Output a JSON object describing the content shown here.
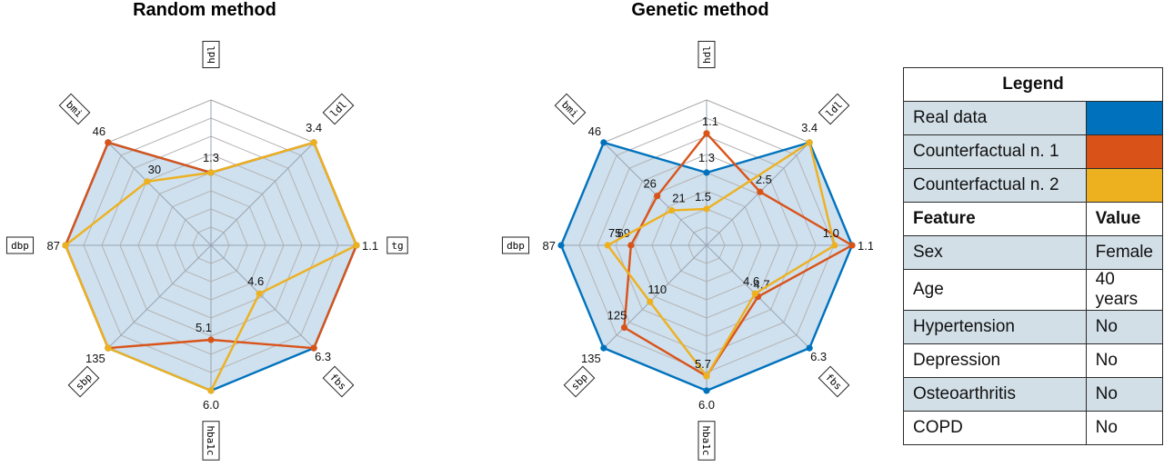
{
  "chart_data": [
    {
      "type": "radar",
      "title": "Random method",
      "axes": [
        "hdl",
        "ldl",
        "tg",
        "fbs",
        "hba1c",
        "sbp",
        "dbp",
        "bmi"
      ],
      "series": [
        {
          "values": [
            1.3,
            3.4,
            1.1,
            6.3,
            6.0,
            135,
            87,
            46
          ],
          "value_labels": [
            "1.3",
            "3.4",
            "1.1",
            "6.3",
            "6.0",
            "135",
            "87",
            "46"
          ],
          "fractions": [
            0.5,
            1.0,
            1.0,
            1.0,
            1.0,
            1.0,
            1.0,
            1.0
          ],
          "color": "#0072BD",
          "filled": true
        },
        {
          "values": [
            1.3,
            3.4,
            1.1,
            6.3,
            5.1,
            135,
            87,
            46
          ],
          "value_labels": [
            "",
            "",
            "",
            "",
            "5.1",
            "",
            "",
            ""
          ],
          "fractions": [
            0.5,
            1.0,
            1.0,
            1.0,
            0.65,
            1.0,
            1.0,
            1.0
          ],
          "color": "#D95319",
          "filled": false
        },
        {
          "values": [
            1.3,
            3.4,
            1.1,
            4.6,
            6.0,
            135,
            87,
            30
          ],
          "value_labels": [
            "",
            "",
            "",
            "4.6",
            "",
            "",
            "",
            "30"
          ],
          "fractions": [
            0.5,
            1.0,
            1.0,
            0.47,
            1.0,
            1.0,
            1.0,
            0.62
          ],
          "color": "#EDB120",
          "filled": false
        }
      ]
    },
    {
      "type": "radar",
      "title": "Genetic method",
      "axes": [
        "hdl",
        "ldl",
        "tg",
        "fbs",
        "hba1c",
        "sbp",
        "dbp",
        "bmi"
      ],
      "series": [
        {
          "values": [
            1.3,
            3.4,
            1.1,
            6.3,
            6.0,
            135,
            87,
            46
          ],
          "value_labels": [
            "1.3",
            "3.4",
            "1.1",
            "6.3",
            "6.0",
            "135",
            "87",
            "46"
          ],
          "fractions": [
            0.5,
            1.0,
            1.0,
            1.0,
            1.0,
            1.0,
            1.0,
            1.0
          ],
          "color": "#0072BD",
          "filled": true
        },
        {
          "values": [
            1.1,
            2.5,
            1.1,
            4.7,
            5.7,
            125,
            69,
            26
          ],
          "value_labels": [
            "1.1",
            "2.5",
            "",
            "4.7",
            "",
            "125",
            "69",
            "26"
          ],
          "fractions": [
            0.77,
            0.52,
            1.0,
            0.5,
            0.9,
            0.8,
            0.52,
            0.48
          ],
          "color": "#D95319",
          "filled": false
        },
        {
          "values": [
            1.5,
            3.4,
            1.0,
            4.6,
            5.7,
            110,
            75,
            21
          ],
          "value_labels": [
            "1.5",
            "",
            "1.0",
            "4.6",
            "5.7",
            "110",
            "75",
            "21"
          ],
          "fractions": [
            0.25,
            1.0,
            0.88,
            0.47,
            0.9,
            0.55,
            0.68,
            0.34
          ],
          "color": "#EDB120",
          "filled": false
        }
      ]
    }
  ],
  "legend": {
    "title": "Legend",
    "items": [
      {
        "label": "Real data",
        "color": "#0072BD"
      },
      {
        "label": "Counterfactual n. 1",
        "color": "#D95319"
      },
      {
        "label": "Counterfactual n. 2",
        "color": "#EDB120"
      }
    ]
  },
  "features": {
    "header": {
      "feature": "Feature",
      "value": "Value"
    },
    "rows": [
      {
        "feature": "Sex",
        "value": "Female"
      },
      {
        "feature": "Age",
        "value": "40 years"
      },
      {
        "feature": "Hypertension",
        "value": "No"
      },
      {
        "feature": "Depression",
        "value": "No"
      },
      {
        "feature": "Osteoarthritis",
        "value": "No"
      },
      {
        "feature": "COPD",
        "value": "No"
      }
    ]
  }
}
